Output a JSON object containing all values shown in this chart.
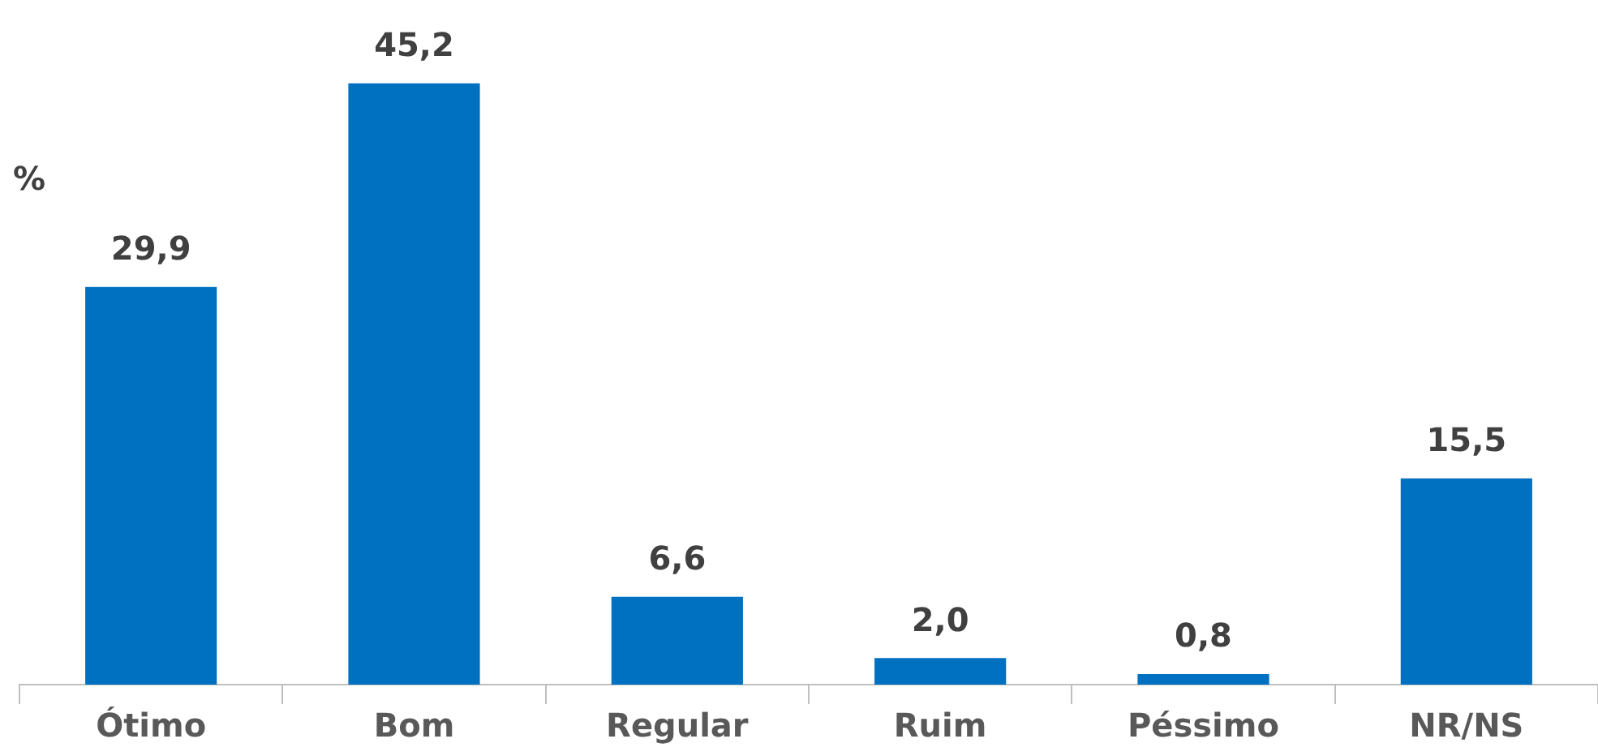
{
  "chart_data": {
    "type": "bar",
    "ylabel": "%",
    "categories": [
      "Ótimo",
      "Bom",
      "Regular",
      "Ruim",
      "Péssimo",
      "NR/NS"
    ],
    "values": [
      29.9,
      45.2,
      6.6,
      2.0,
      0.8,
      15.5
    ],
    "value_labels": [
      "29,9",
      "45,2",
      "6,6",
      "2,0",
      "0,8",
      "15,5"
    ],
    "color": "#0070c0",
    "grid": false,
    "legend": false
  }
}
